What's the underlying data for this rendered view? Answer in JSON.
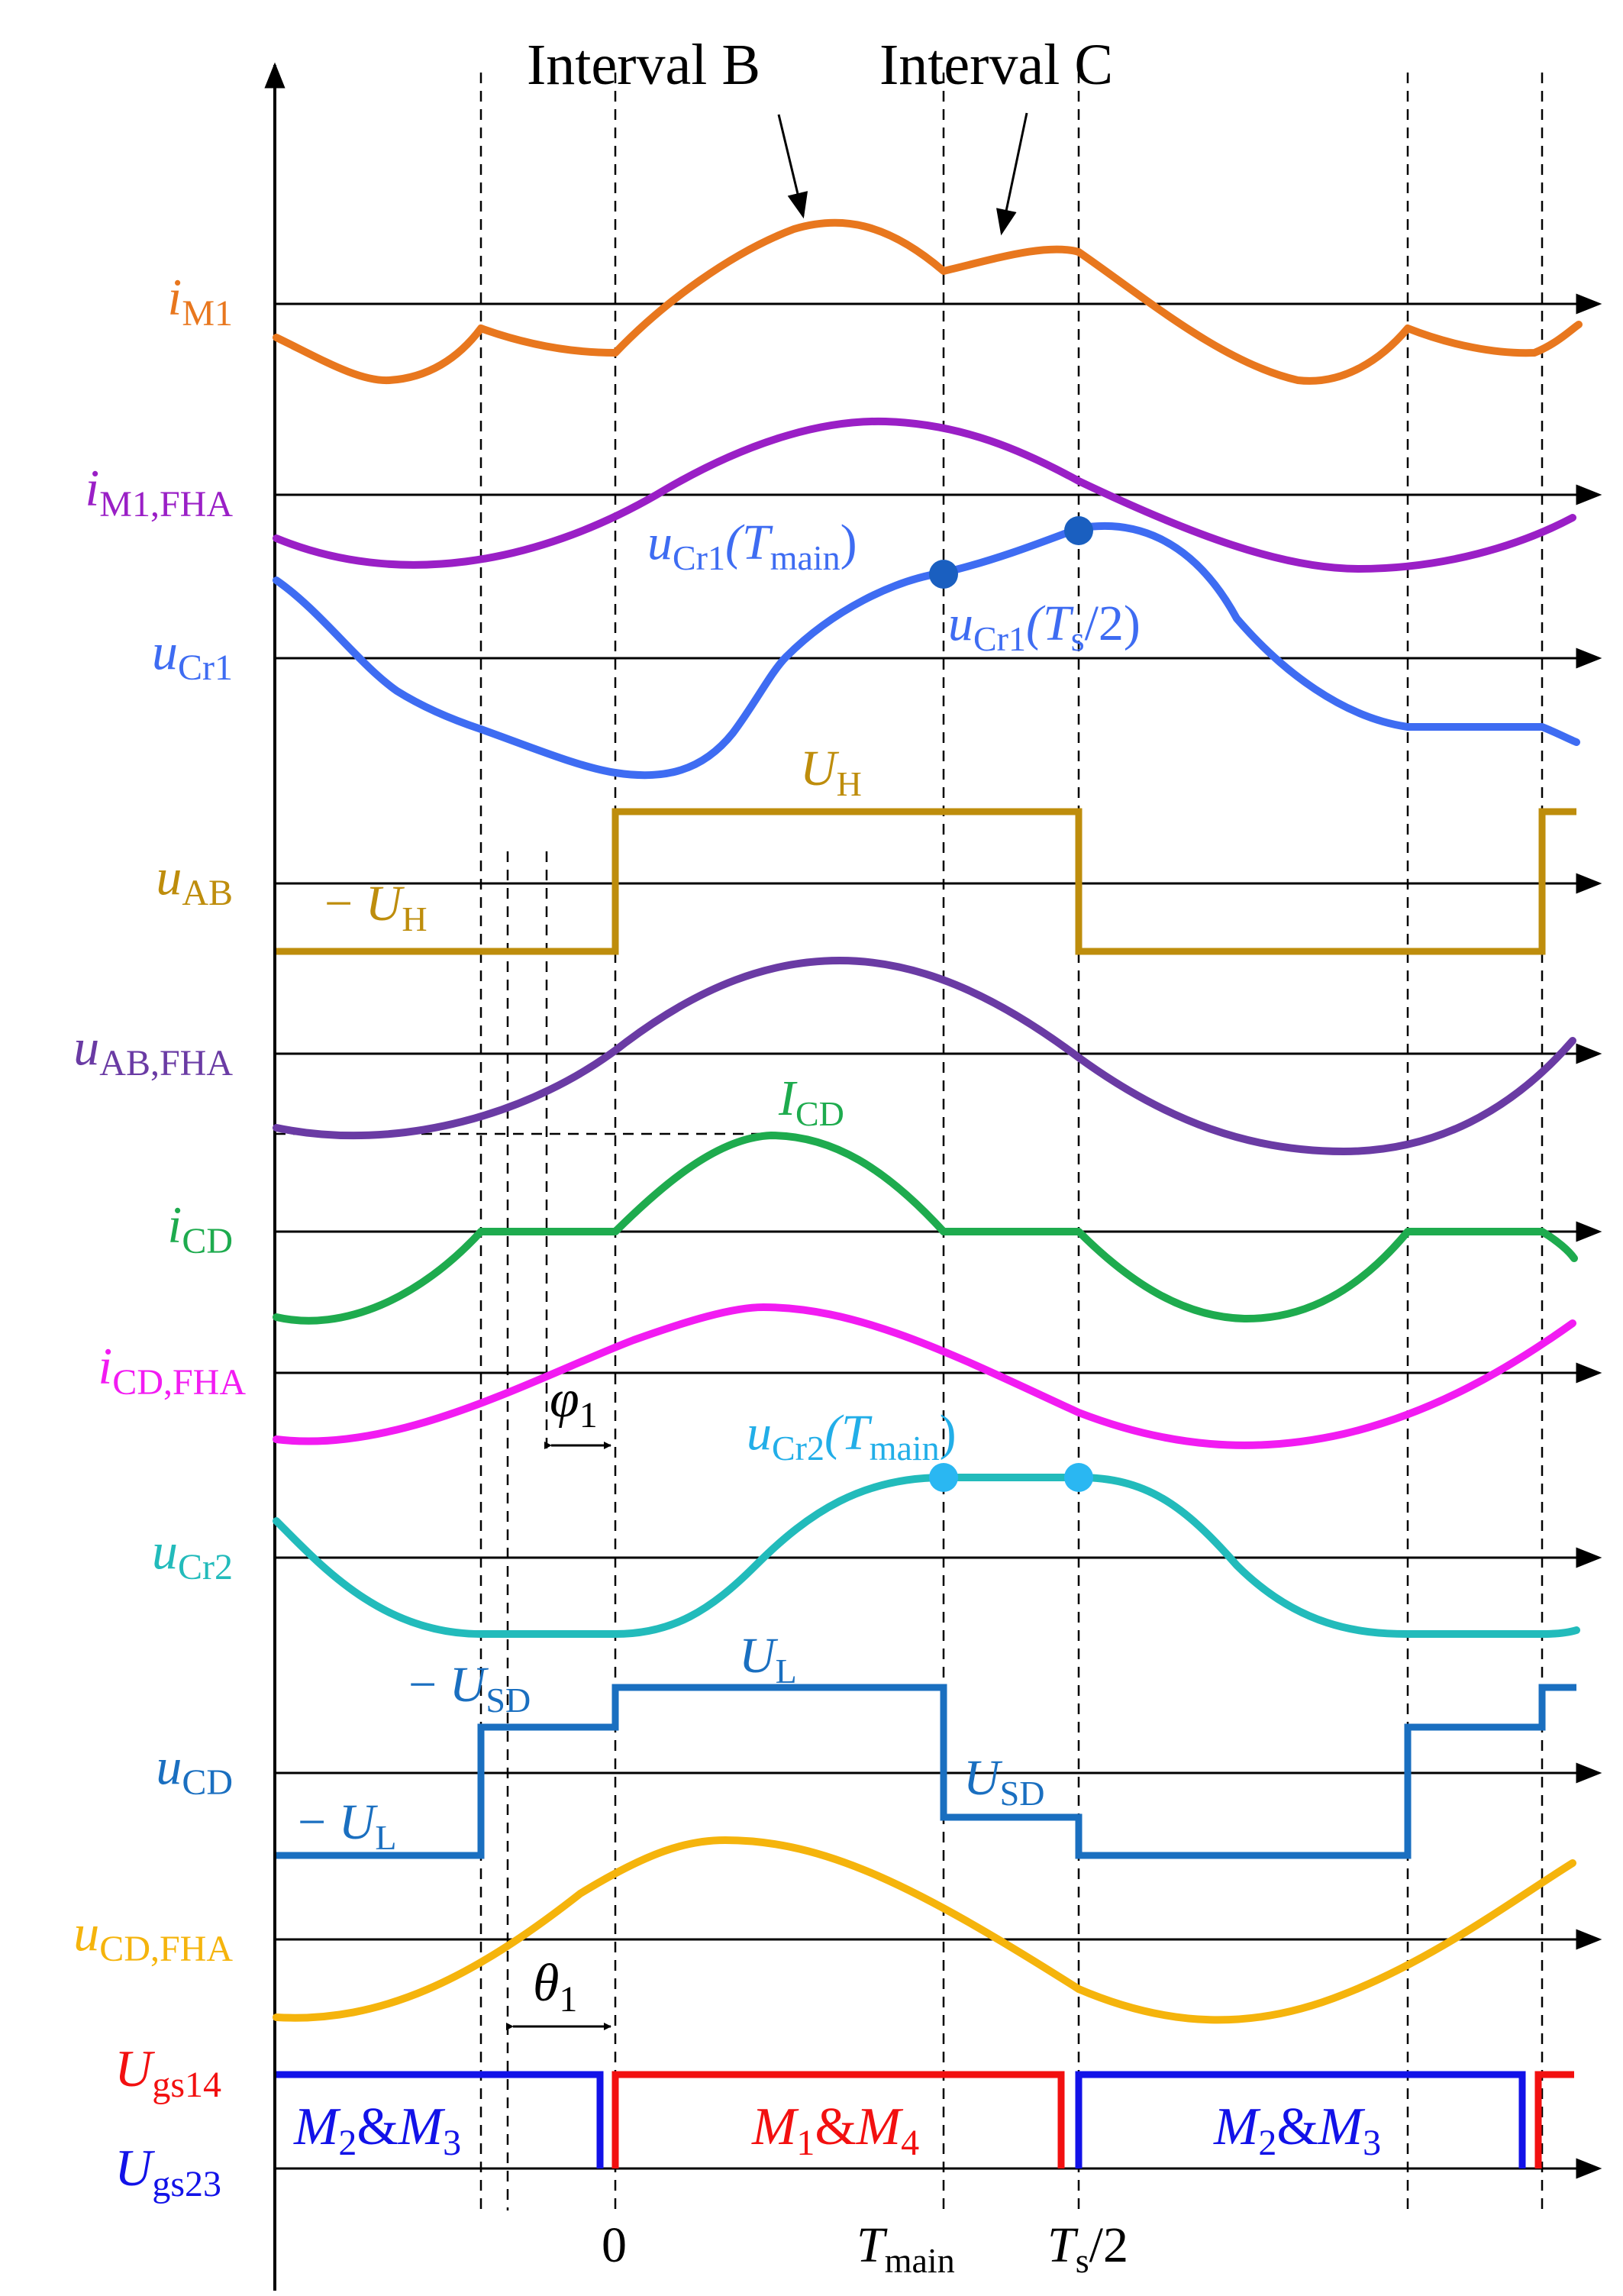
{
  "annotations": {
    "interval_b": "Interval B",
    "interval_c": "Interval C",
    "ucr1_tmain": {
      "main": "u",
      "sub": "Cr1",
      "tail": "(T",
      "tail_sub": "main",
      "end": ")"
    },
    "ucr1_ts2": {
      "main": "u",
      "sub": "Cr1",
      "tail": "(T",
      "tail_sub": "s",
      "end": "/2)"
    },
    "ucr2_tmain": {
      "main": "u",
      "sub": "Cr2",
      "tail": "(T",
      "tail_sub": "main",
      "end": ")"
    },
    "uh_pos": {
      "main": "U",
      "sub": "H"
    },
    "uh_neg": {
      "prefix": "− ",
      "main": "U",
      "sub": "H"
    },
    "icd_peak": {
      "main": "I",
      "sub": "CD"
    },
    "phi1": {
      "main": "φ",
      "sub": "1"
    },
    "theta1": {
      "main": "θ",
      "sub": "1"
    },
    "usd_neg": {
      "prefix": "− ",
      "main": "U",
      "sub": "SD"
    },
    "ul_pos": {
      "main": "U",
      "sub": "L"
    },
    "usd_pos": {
      "main": "U",
      "sub": "SD"
    },
    "ul_neg": {
      "prefix": "− ",
      "main": "U",
      "sub": "L"
    }
  },
  "signals": [
    {
      "main": "i",
      "sub": "M1",
      "color": "#E8771E"
    },
    {
      "main": "i",
      "sub": "M1,FHA",
      "color": "#9A1FC6"
    },
    {
      "main": "u",
      "sub": "Cr1",
      "color": "#3E6CF2"
    },
    {
      "main": "u",
      "sub": "AB",
      "color": "#BE8D0C"
    },
    {
      "main": "u",
      "sub": "AB,FHA",
      "color": "#6A3BA4"
    },
    {
      "main": "i",
      "sub": "CD",
      "color": "#1EAB4E"
    },
    {
      "main": "i",
      "sub": "CD,FHA",
      "color": "#F21BF2"
    },
    {
      "main": "u",
      "sub": "Cr2",
      "color": "#22BBBB"
    },
    {
      "main": "u",
      "sub": "CD",
      "color": "#1A6FC0"
    },
    {
      "main": "u",
      "sub": "CD,FHA",
      "color": "#F5B40C"
    }
  ],
  "gate_labels": [
    {
      "main": "U",
      "sub": "gs14",
      "color": "#F21010"
    },
    {
      "main": "U",
      "sub": "gs23",
      "color": "#1212E8"
    }
  ],
  "gate_segments": [
    {
      "a": "M",
      "a_sub": "2",
      "mid": "&",
      "b": "M",
      "b_sub": "3",
      "color": "#1212E8"
    },
    {
      "a": "M",
      "a_sub": "1",
      "mid": "&",
      "b": "M",
      "b_sub": "4",
      "color": "#F21010"
    },
    {
      "a": "M",
      "a_sub": "2",
      "mid": "&",
      "b": "M",
      "b_sub": "3",
      "color": "#1212E8"
    }
  ],
  "time_ticks": [
    {
      "main": "0",
      "sub": "",
      "tail": ""
    },
    {
      "main": "T",
      "sub": "main",
      "tail": ""
    },
    {
      "main": "T",
      "sub": "s",
      "tail": "/2"
    }
  ]
}
